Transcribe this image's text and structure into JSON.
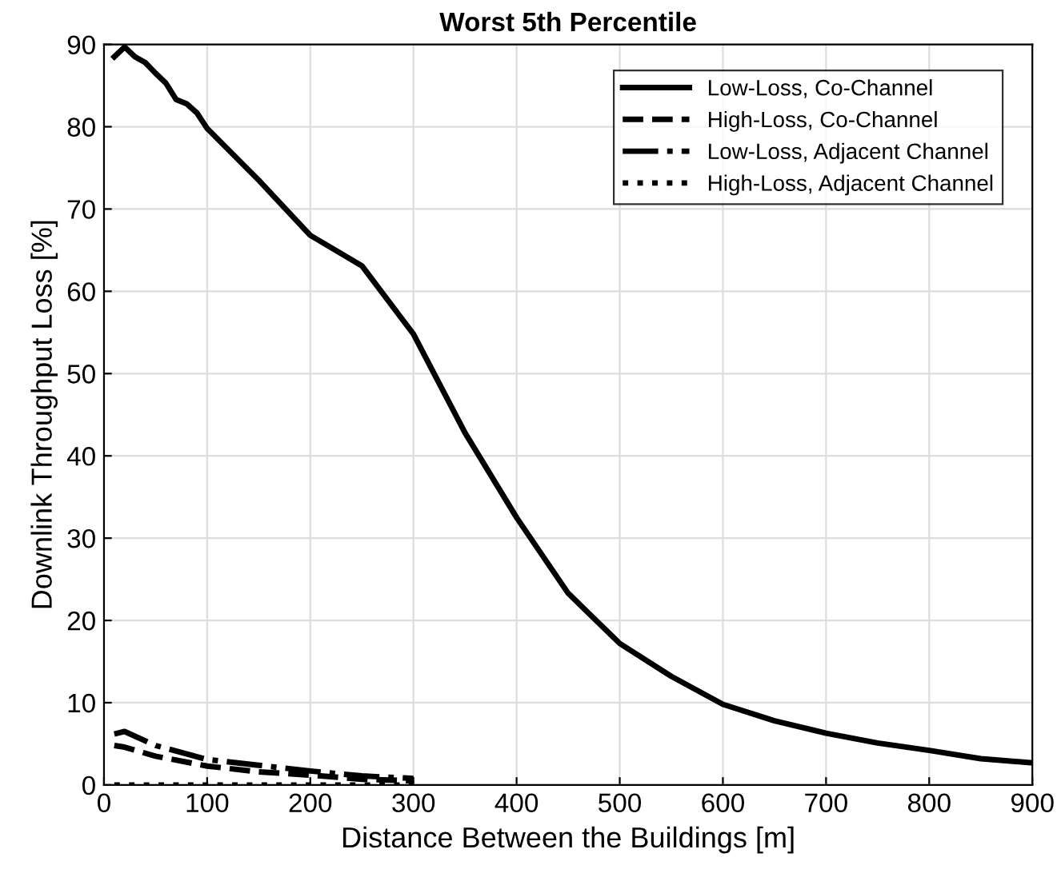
{
  "chart_data": {
    "type": "line",
    "title": "Worst 5th Percentile",
    "xlabel": "Distance Between the Buildings [m]",
    "ylabel": "Downlink Throughput Loss [%]",
    "xlim": [
      0,
      900
    ],
    "ylim": [
      0,
      90
    ],
    "xticks": [
      0,
      100,
      200,
      300,
      400,
      500,
      600,
      700,
      800,
      900
    ],
    "yticks": [
      0,
      10,
      20,
      30,
      40,
      50,
      60,
      70,
      80,
      90
    ],
    "grid": true,
    "legend": "top right",
    "series": [
      {
        "name": "Low-Loss, Co-Channel",
        "color": "#000000",
        "line_style": "solid",
        "x": [
          10,
          20,
          30,
          40,
          50,
          60,
          70,
          80,
          90,
          100,
          150,
          200,
          250,
          300,
          350,
          400,
          450,
          500,
          550,
          600,
          650,
          700,
          750,
          800,
          850,
          900
        ],
        "values": [
          88.5,
          89.7,
          88.5,
          87.8,
          86.5,
          85.3,
          83.3,
          82.8,
          81.7,
          79.8,
          73.5,
          66.8,
          63.1,
          54.8,
          42.8,
          32.5,
          23.3,
          17.2,
          13.2,
          9.8,
          7.8,
          6.3,
          5.1,
          4.2,
          3.2,
          2.7
        ]
      },
      {
        "name": "High-Loss, Co-Channel",
        "color": "#000000",
        "line_style": "dashed",
        "x": [
          10,
          20,
          50,
          100,
          150,
          200,
          250,
          300
        ],
        "values": [
          4.8,
          4.6,
          3.5,
          2.3,
          1.6,
          1.2,
          0.7,
          0.5
        ]
      },
      {
        "name": "Low-Loss, Adjacent Channel",
        "color": "#000000",
        "line_style": "dashdot",
        "x": [
          10,
          20,
          50,
          100,
          150,
          200,
          250,
          300
        ],
        "values": [
          6.2,
          6.5,
          4.8,
          3.1,
          2.4,
          1.7,
          1.1,
          0.8
        ]
      },
      {
        "name": "High-Loss, Adjacent Channel",
        "color": "#000000",
        "line_style": "dotted",
        "x": [
          10,
          20,
          50,
          100,
          150,
          200,
          250,
          300
        ],
        "values": [
          0,
          0,
          0,
          0,
          0,
          0,
          0,
          0
        ]
      }
    ]
  }
}
